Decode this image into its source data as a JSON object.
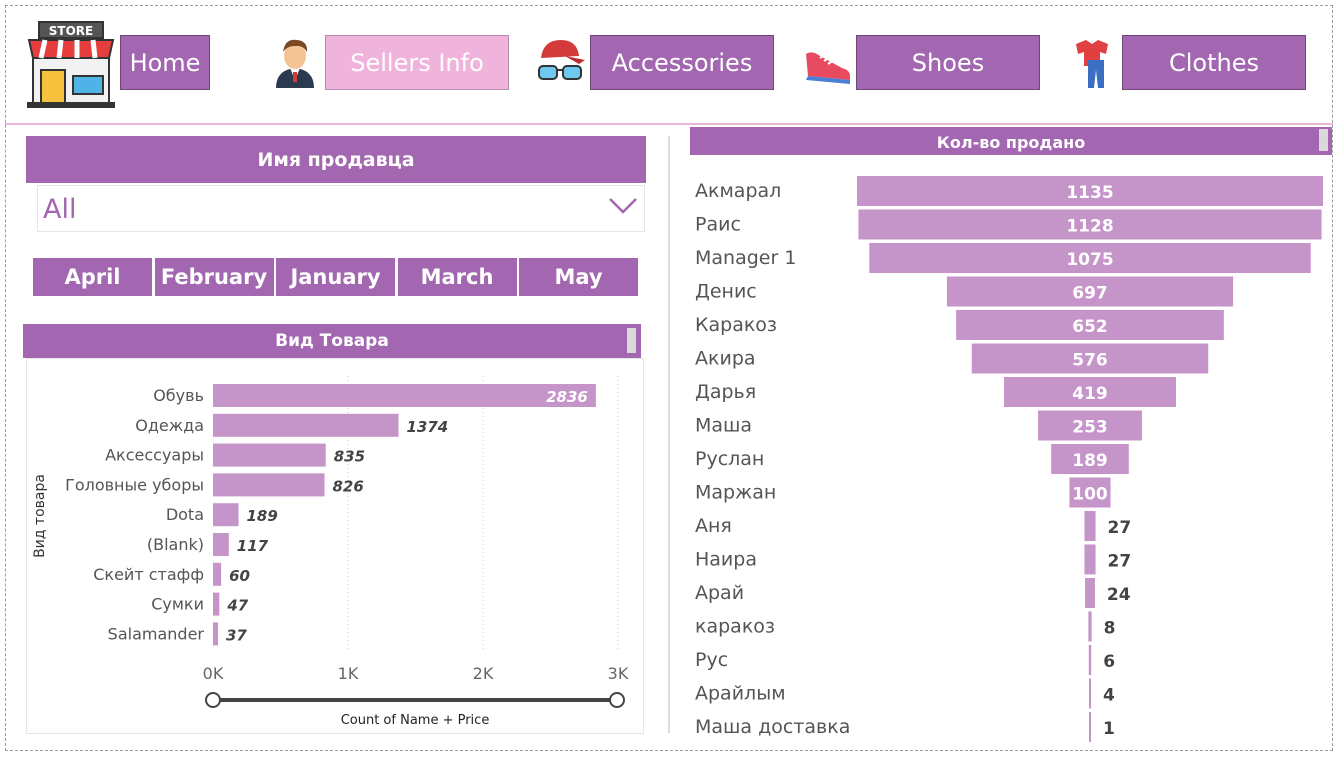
{
  "nav": {
    "items": [
      {
        "label": "Home",
        "active": false,
        "icon": "store-icon"
      },
      {
        "label": "Sellers Info",
        "active": true,
        "icon": "seller-icon"
      },
      {
        "label": "Accessories",
        "active": false,
        "icon": "cap-sunglasses-icon"
      },
      {
        "label": "Shoes",
        "active": false,
        "icon": "sneaker-icon"
      },
      {
        "label": "Clothes",
        "active": false,
        "icon": "clothes-icon"
      }
    ],
    "logo_text": "STORE"
  },
  "colors": {
    "accent": "#a366b1",
    "active": "#efb3dc",
    "bar": "#c594c9"
  },
  "slicer": {
    "title": "Имя продавца",
    "value": "All"
  },
  "months": [
    "April",
    "February",
    "January",
    "March",
    "May"
  ],
  "chart_data": [
    {
      "type": "bar",
      "orientation": "horizontal",
      "title": "Вид Товара",
      "ylabel": "Вид товара",
      "xlabel": "Count of Name + Price",
      "categories": [
        "Обувь",
        "Одежда",
        "Аксессуары",
        "Головные уборы",
        "Dota",
        "(Blank)",
        "Скейт стафф",
        "Сумки",
        "Salamander"
      ],
      "values": [
        2836,
        1374,
        835,
        826,
        189,
        117,
        60,
        47,
        37
      ],
      "xlim": [
        0,
        3000
      ],
      "xticks": [
        "0K",
        "1K",
        "2K",
        "3K"
      ],
      "grid": true
    },
    {
      "type": "funnel",
      "title": "Кол-во продано",
      "categories": [
        "Акмарал",
        "Раис",
        "Manager 1",
        "Денис",
        "Каракоз",
        "Акира",
        "Дарья",
        "Маша",
        "Руслан",
        "Маржан",
        "Аня",
        "Наира",
        "Арай",
        "каракоз",
        "Рус",
        "Арайлым",
        "Маша доставка"
      ],
      "values": [
        1135,
        1128,
        1075,
        697,
        652,
        576,
        419,
        253,
        189,
        100,
        27,
        27,
        24,
        8,
        6,
        4,
        1
      ]
    }
  ]
}
